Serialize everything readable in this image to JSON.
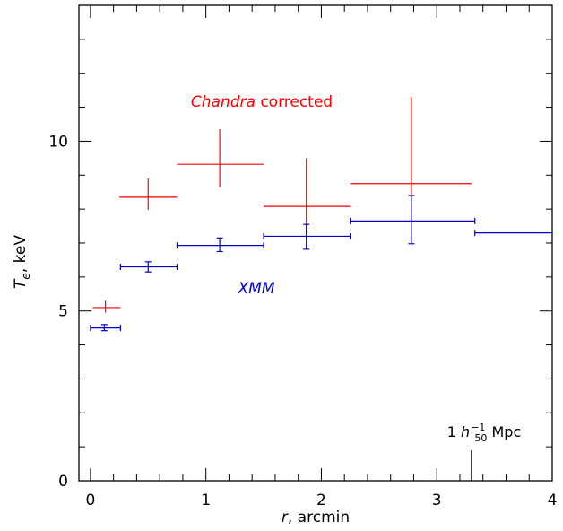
{
  "chart_data": {
    "type": "scatter",
    "xlabel": "r, arcmin",
    "ylabel": "T_e, keV",
    "xlim": [
      -0.1,
      4.0
    ],
    "ylim": [
      0,
      14
    ],
    "x_ticks": [
      "0",
      "1",
      "2",
      "3",
      "4"
    ],
    "y_ticks": [
      "0",
      "5",
      "10"
    ],
    "grid": false,
    "series": [
      {
        "name": "Chandra corrected",
        "color": "#ff0000",
        "points": [
          {
            "x": 0.13,
            "xlo": 0.02,
            "xhi": 0.26,
            "y": 5.1,
            "ylo": 4.95,
            "yhi": 5.3
          },
          {
            "x": 0.5,
            "xlo": 0.25,
            "xhi": 0.75,
            "y": 8.35,
            "ylo": 7.98,
            "yhi": 8.9
          },
          {
            "x": 1.12,
            "xlo": 0.75,
            "xhi": 1.5,
            "y": 9.32,
            "ylo": 8.65,
            "yhi": 10.35
          },
          {
            "x": 1.87,
            "xlo": 1.5,
            "xhi": 2.25,
            "y": 8.08,
            "ylo": 7.1,
            "yhi": 9.5
          },
          {
            "x": 2.78,
            "xlo": 2.25,
            "xhi": 3.3,
            "y": 8.75,
            "ylo": 6.98,
            "yhi": 11.3
          }
        ]
      },
      {
        "name": "XMM",
        "color": "#0000cc",
        "points": [
          {
            "x": 0.12,
            "xlo": 0.0,
            "xhi": 0.26,
            "y": 4.5,
            "ylo": 4.42,
            "yhi": 4.6
          },
          {
            "x": 0.5,
            "xlo": 0.26,
            "xhi": 0.75,
            "y": 6.3,
            "ylo": 6.15,
            "yhi": 6.45
          },
          {
            "x": 1.12,
            "xlo": 0.75,
            "xhi": 1.5,
            "y": 6.93,
            "ylo": 6.75,
            "yhi": 7.15
          },
          {
            "x": 1.87,
            "xlo": 1.5,
            "xhi": 2.25,
            "y": 7.2,
            "ylo": 6.82,
            "yhi": 7.55
          },
          {
            "x": 2.78,
            "xlo": 2.25,
            "xhi": 3.33,
            "y": 7.65,
            "ylo": 6.98,
            "yhi": 8.4
          },
          {
            "x": 3.7,
            "xlo": 3.33,
            "xhi": 4.0,
            "y": 7.3,
            "ylo": 7.3,
            "yhi": 7.3
          }
        ]
      }
    ],
    "annotations": {
      "chandra_label": "Chandra corrected",
      "xmm_label": "XMM",
      "scale_marker": {
        "x": 3.3,
        "label_prefix": "1 ",
        "label_h": "h",
        "label_sub": "50",
        "label_sup": "−1",
        "label_suffix": " Mpc"
      }
    }
  }
}
